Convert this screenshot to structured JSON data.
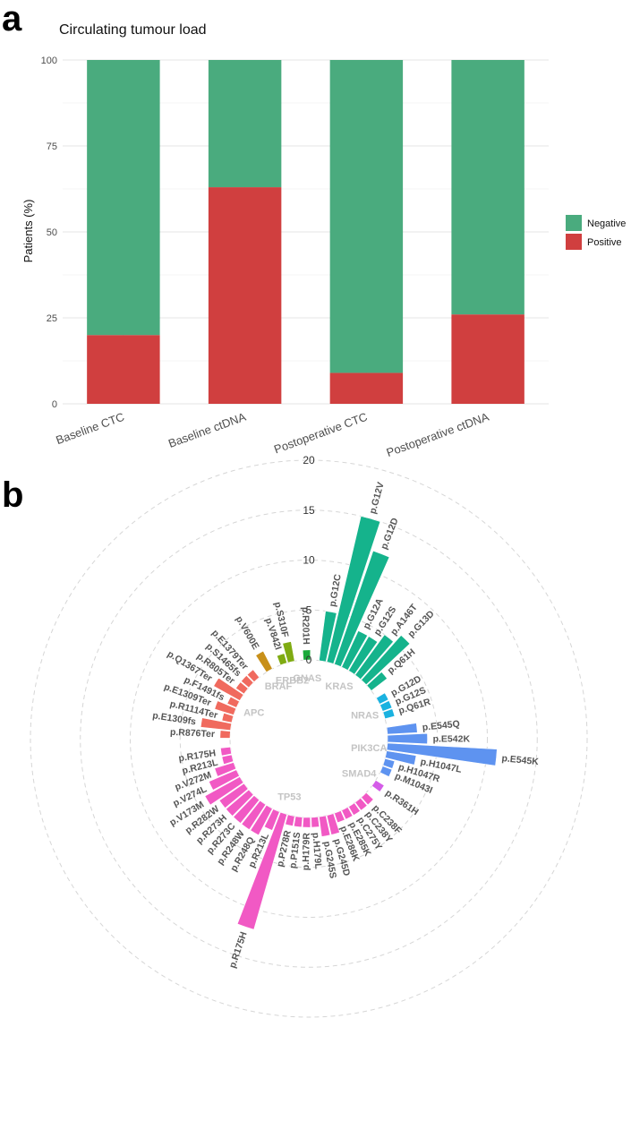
{
  "panel_a_letter": "a",
  "panel_b_letter": "b",
  "chart_data": [
    {
      "type": "bar",
      "stacked": true,
      "title": "Circulating tumour load",
      "ylabel": "Patients (%)",
      "xlabel": "",
      "ylim": [
        0,
        100
      ],
      "yticks": [
        0,
        25,
        50,
        75,
        100
      ],
      "categories": [
        "Baseline CTC",
        "Baseline ctDNA",
        "Postoperative CTC",
        "Postoperative ctDNA"
      ],
      "series": [
        {
          "name": "Positive",
          "color": "#d03f3f",
          "values": [
            20,
            63,
            9,
            26
          ]
        },
        {
          "name": "Negative",
          "color": "#4aab7e",
          "values": [
            80,
            37,
            91,
            74
          ]
        }
      ],
      "legend_order": [
        "Negative",
        "Positive"
      ],
      "legend_position": "right"
    },
    {
      "type": "circular-bar",
      "rlim": [
        0,
        20
      ],
      "rticks": [
        0,
        5,
        10,
        15,
        20
      ],
      "groups": [
        {
          "gene": "APC",
          "color": "#f06a5e",
          "mutations": [
            {
              "label": "p.R876Ter",
              "value": 1
            },
            {
              "label": "p.E1309fs",
              "value": 3
            },
            {
              "label": "p.R1114Ter",
              "value": 1
            },
            {
              "label": "p.E1309Ter",
              "value": 2
            },
            {
              "label": "p.F1491fs",
              "value": 1
            },
            {
              "label": "p.Q1367Ter",
              "value": 3
            },
            {
              "label": "p.R805Ter",
              "value": 1
            },
            {
              "label": "p.S1465fs",
              "value": 1
            },
            {
              "label": "p.E1379Ter",
              "value": 1
            }
          ]
        },
        {
          "gene": "BRAF",
          "color": "#c8901a",
          "mutations": [
            {
              "label": "p.V600E",
              "value": 2
            }
          ]
        },
        {
          "gene": "ERBB2",
          "color": "#7fab12",
          "mutations": [
            {
              "label": "p.V842I",
              "value": 1
            },
            {
              "label": "p.S310F",
              "value": 2
            }
          ]
        },
        {
          "gene": "GNAS",
          "color": "#1aaa3a",
          "mutations": [
            {
              "label": "p.R201H",
              "value": 1
            }
          ]
        },
        {
          "gene": "KRAS",
          "color": "#15b38c",
          "mutations": [
            {
              "label": "p.G12C",
              "value": 5
            },
            {
              "label": "p.G12V",
              "value": 15
            },
            {
              "label": "p.G12D",
              "value": 12
            },
            {
              "label": "p.G12A",
              "value": 4
            },
            {
              "label": "p.G12S",
              "value": 4
            },
            {
              "label": "p.A146T",
              "value": 5
            },
            {
              "label": "p.G13D",
              "value": 6
            },
            {
              "label": "p.Q61H",
              "value": 2
            }
          ]
        },
        {
          "gene": "NRAS",
          "color": "#1ab2e0",
          "mutations": [
            {
              "label": "p.G12D",
              "value": 1
            },
            {
              "label": "p.G12S",
              "value": 1
            },
            {
              "label": "p.Q61R",
              "value": 1
            }
          ]
        },
        {
          "gene": "PIK3CA",
          "color": "#5e93f0",
          "mutations": [
            {
              "label": "p.E545Q",
              "value": 3
            },
            {
              "label": "p.E542K",
              "value": 4
            },
            {
              "label": "p.E545K",
              "value": 11
            },
            {
              "label": "p.H1047L",
              "value": 3
            },
            {
              "label": "p.H1047R",
              "value": 1
            },
            {
              "label": "p.M1043I",
              "value": 1
            }
          ]
        },
        {
          "gene": "SMAD4",
          "color": "#d45ce8",
          "mutations": [
            {
              "label": "p.R361H",
              "value": 1
            }
          ]
        },
        {
          "gene": "TP53",
          "color": "#f159c4",
          "mutations": [
            {
              "label": "p.C238F",
              "value": 1
            },
            {
              "label": "p.C238Y",
              "value": 1
            },
            {
              "label": "p.C275Y",
              "value": 1
            },
            {
              "label": "p.E285K",
              "value": 1
            },
            {
              "label": "p.E286K",
              "value": 1
            },
            {
              "label": "p.G245D",
              "value": 2
            },
            {
              "label": "p.G245S",
              "value": 2
            },
            {
              "label": "p.H179L",
              "value": 1
            },
            {
              "label": "p.H179R",
              "value": 1
            },
            {
              "label": "p.P151S",
              "value": 1
            },
            {
              "label": "p.P278R",
              "value": 1
            },
            {
              "label": "p.R175H",
              "value": 12
            },
            {
              "label": "p.R213L",
              "value": 2
            },
            {
              "label": "p.R248Q",
              "value": 3
            },
            {
              "label": "p.R248W",
              "value": 3
            },
            {
              "label": "p.R273C",
              "value": 3
            },
            {
              "label": "p.R273H",
              "value": 3
            },
            {
              "label": "p.R282W",
              "value": 3
            },
            {
              "label": "p.V173M",
              "value": 4
            },
            {
              "label": "p.V274L",
              "value": 3
            },
            {
              "label": "p.V272M",
              "value": 2
            },
            {
              "label": "p.R213L ",
              "value": 1
            },
            {
              "label": "p.R175H ",
              "value": 1
            }
          ]
        }
      ]
    }
  ]
}
